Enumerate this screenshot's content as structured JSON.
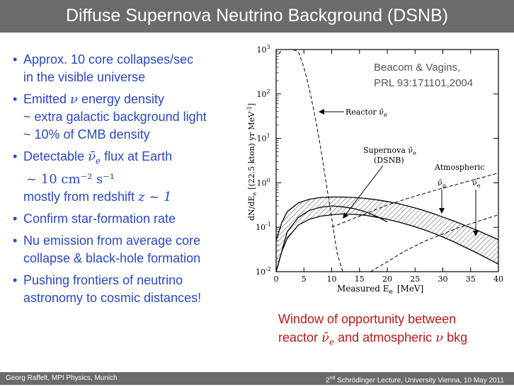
{
  "title": "Diffuse Supernova Neutrino Background (DSNB)",
  "bullets": [
    {
      "lines": [
        "Approx. 10 core collapses/sec",
        "in the visible universe"
      ]
    },
    {
      "line1_prefix": "Emitted ",
      "line1_nu": "ν",
      "line1_suffix": " energy density",
      "line2": "~ extra galactic background light",
      "line3": "~ 10% of CMB density"
    },
    {
      "prefix": "Detectable ",
      "nubar": "ν̄",
      "sub": "e",
      "suffix": " flux at Earth",
      "flux": "~ 10 cm⁻² s⁻¹",
      "redshift_prefix": "mostly from redshift ",
      "redshift": "z ~ 1"
    },
    {
      "lines": [
        "Confirm star-formation rate"
      ]
    },
    {
      "lines": [
        "Nu emission from average core",
        "collapse & black-hole formation"
      ]
    },
    {
      "lines": [
        "Pushing frontiers of neutrino",
        "astronomy to cosmic distances!"
      ]
    }
  ],
  "citation": {
    "line1": "Beacom & Vagins,",
    "line2": "PRL 93:171101,2004"
  },
  "caption": {
    "line1": "Window of opportunity between",
    "line2_prefix": "reactor ",
    "nubar": "ν̄",
    "sub": "e",
    "line2_mid": " and atmospheric ",
    "nu": "ν",
    "line2_suffix": " bkg"
  },
  "footer": {
    "left": "Georg Raffelt, MPI Physics, Munich",
    "right_sup": "nd",
    "right_num": "2",
    "right_text": " Schrödinger Lecture, University Vienna, 10 May 2011"
  },
  "chart_data": {
    "type": "line",
    "xlabel": "Measured E",
    "xlabel_sub": "e",
    "xlabel_unit": "[MeV]",
    "ylabel": "dN/dE",
    "ylabel_sub": "e",
    "ylabel_unit": "[(22.5 kton) yr MeV",
    "ylabel_sup": "-1",
    "ylabel_close": "]",
    "xlim": [
      0,
      40
    ],
    "ylim_log10": [
      -2,
      3
    ],
    "x_ticks": [
      0,
      5,
      10,
      15,
      20,
      25,
      30,
      35,
      40
    ],
    "y_ticks": [
      {
        "base": "10",
        "exp": "-2",
        "v": -2
      },
      {
        "base": "10",
        "exp": "-1",
        "v": -1
      },
      {
        "base": "10",
        "exp": "0",
        "v": 0
      },
      {
        "base": "10",
        "exp": "1",
        "v": 1
      },
      {
        "base": "10",
        "exp": "2",
        "v": 2
      },
      {
        "base": "10",
        "exp": "3",
        "v": 3
      }
    ],
    "labels": {
      "reactor": "Reactor ν̄",
      "reactor_sub": "e",
      "supernova": "Supernova ν̄",
      "supernova_sub": "e",
      "dsnb": "(DSNB)",
      "atmospheric": "Atmospheric",
      "atm_numu": "ν̄",
      "atm_numu_sub": "μ",
      "atm_nue": "ν̄",
      "atm_nue_sub": "e"
    },
    "series": [
      {
        "id": "reactor",
        "style": "dashed",
        "x": [
          0.5,
          1,
          2,
          3,
          4,
          5,
          6,
          7,
          8,
          9,
          10,
          11,
          12
        ],
        "log10y": [
          2.9,
          3.1,
          3.25,
          3.2,
          2.95,
          2.6,
          2.1,
          1.5,
          0.8,
          0.0,
          -0.8,
          -1.6,
          -2.0
        ]
      },
      {
        "id": "dsnb_upper",
        "style": "solid",
        "x": [
          0,
          1,
          2,
          4,
          6,
          8,
          10,
          12,
          14,
          16,
          18,
          20,
          22,
          24,
          26,
          28,
          30,
          32,
          34,
          36,
          38,
          40
        ],
        "log10y": [
          -1.3,
          -0.9,
          -0.65,
          -0.45,
          -0.37,
          -0.33,
          -0.32,
          -0.32,
          -0.33,
          -0.35,
          -0.38,
          -0.42,
          -0.47,
          -0.53,
          -0.6,
          -0.68,
          -0.77,
          -0.86,
          -0.96,
          -1.06,
          -1.17,
          -1.28
        ]
      },
      {
        "id": "dsnb_lower",
        "style": "solid",
        "x": [
          0,
          1,
          2,
          4,
          6,
          8,
          10,
          12,
          14,
          16,
          18,
          20,
          22,
          24,
          26,
          28,
          30,
          32,
          34,
          36,
          38,
          40
        ],
        "log10y": [
          -2.0,
          -1.55,
          -1.25,
          -0.95,
          -0.82,
          -0.75,
          -0.72,
          -0.7,
          -0.71,
          -0.73,
          -0.77,
          -0.82,
          -0.88,
          -0.95,
          -1.03,
          -1.12,
          -1.22,
          -1.33,
          -1.45,
          -1.57,
          -1.7,
          -1.83
        ]
      },
      {
        "id": "dsnb_mid",
        "style": "solid",
        "x": [
          0,
          2,
          4,
          6,
          8,
          10,
          12,
          14,
          16,
          18,
          20
        ],
        "log10y": [
          -2.0,
          -1.1,
          -0.78,
          -0.62,
          -0.55,
          -0.52,
          -0.54,
          -0.58,
          -0.65,
          -0.75,
          -0.88
        ]
      },
      {
        "id": "atm_numu",
        "style": "dashed",
        "x": [
          10,
          12,
          15,
          18,
          20,
          25,
          30,
          35,
          40
        ],
        "log10y": [
          -1.0,
          -0.9,
          -0.75,
          -0.6,
          -0.5,
          -0.3,
          -0.12,
          0.05,
          0.22
        ]
      },
      {
        "id": "atm_nue",
        "style": "dashed",
        "x": [
          17,
          19,
          21,
          23,
          25,
          27,
          30,
          33,
          36,
          40
        ],
        "log10y": [
          -2.0,
          -1.85,
          -1.7,
          -1.55,
          -1.42,
          -1.3,
          -1.15,
          -1.0,
          -0.88,
          -0.72
        ]
      }
    ]
  }
}
